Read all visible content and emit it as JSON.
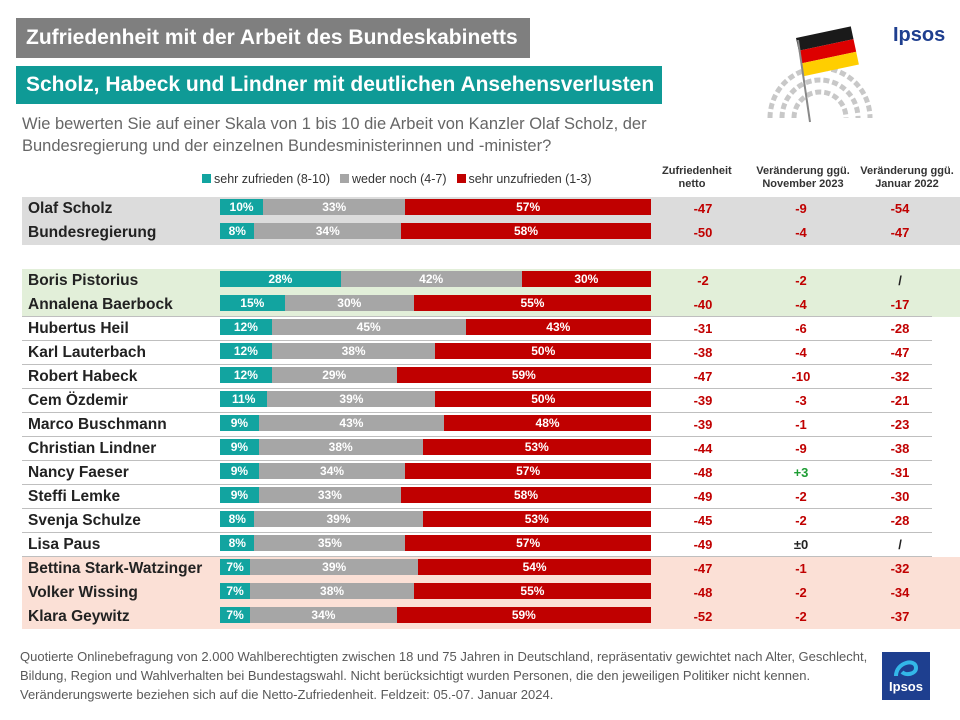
{
  "header": {
    "title": "Zufriedenheit mit der Arbeit des Bundeskabinetts",
    "subtitle": "Scholz, Habeck und Lindner mit deutlichen Ansehensverlusten",
    "question": "Wie bewerten Sie auf einer Skala von 1 bis 10 die Arbeit von Kanzler Olaf Scholz, der Bundesregierung und der einzelnen Bundesministerinnen und -minister?",
    "brand": "Ipsos"
  },
  "legend": {
    "s1": "sehr zufrieden (8-10)",
    "s2": "weder noch (4-7)",
    "s3": "sehr unzufrieden (1-3)"
  },
  "columns": {
    "c1": [
      "Zufriedenheit",
      "netto"
    ],
    "c2": [
      "Veränderung ggü.",
      "November 2023"
    ],
    "c3": [
      "Veränderung ggü.",
      "Januar 2022"
    ]
  },
  "colors": {
    "sehr_zufrieden": "#12a4a0",
    "weder_noch": "#a6a6a6",
    "sehr_unzufrieden": "#c00000",
    "title_gray": "#7f7f7f",
    "title_teal": "#0f9a96",
    "band_gray": "#dcdcdc",
    "band_green": "#e2efd9",
    "band_pink": "#fbe0d6",
    "positive_change": "#1e9d34"
  },
  "chart_data": {
    "type": "bar",
    "stacked": true,
    "orientation": "horizontal",
    "categories": [
      "Olaf Scholz",
      "Bundesregierung",
      "Boris Pistorius",
      "Annalena Baerbock",
      "Hubertus Heil",
      "Karl Lauterbach",
      "Robert Habeck",
      "Cem Özdemir",
      "Marco Buschmann",
      "Christian Lindner",
      "Nancy Faeser",
      "Steffi Lemke",
      "Svenja Schulze",
      "Lisa Paus",
      "Bettina Stark-Watzinger",
      "Volker Wissing",
      "Klara Geywitz"
    ],
    "series": [
      {
        "name": "sehr zufrieden (8-10)",
        "values": [
          10,
          8,
          28,
          15,
          12,
          12,
          12,
          11,
          9,
          9,
          9,
          9,
          8,
          8,
          7,
          7,
          7
        ]
      },
      {
        "name": "weder noch (4-7)",
        "values": [
          33,
          34,
          42,
          30,
          45,
          38,
          29,
          39,
          43,
          38,
          34,
          33,
          39,
          35,
          39,
          38,
          34
        ]
      },
      {
        "name": "sehr unzufrieden (1-3)",
        "values": [
          57,
          58,
          30,
          55,
          43,
          50,
          59,
          50,
          48,
          53,
          57,
          58,
          53,
          57,
          54,
          55,
          59
        ]
      }
    ],
    "labels": [
      [
        "10%",
        "33%",
        "57%"
      ],
      [
        "8%",
        "34%",
        "58%"
      ],
      [
        "28%",
        "42%",
        "30%"
      ],
      [
        "15%",
        "30%",
        "55%"
      ],
      [
        "12%",
        "45%",
        "43%"
      ],
      [
        "12%",
        "38%",
        "50%"
      ],
      [
        "12%",
        "29%",
        "59%"
      ],
      [
        "11%",
        "39%",
        "50%"
      ],
      [
        "9%",
        "43%",
        "48%"
      ],
      [
        "9%",
        "38%",
        "53%"
      ],
      [
        "9%",
        "34%",
        "57%"
      ],
      [
        "9%",
        "33%",
        "58%"
      ],
      [
        "8%",
        "39%",
        "53%"
      ],
      [
        "8%",
        "35%",
        "57%"
      ],
      [
        "7%",
        "39%",
        "54%"
      ],
      [
        "7%",
        "38%",
        "55%"
      ],
      [
        "7%",
        "34%",
        "59%"
      ]
    ],
    "netto": [
      "-47",
      "-50",
      "-2",
      "-40",
      "-31",
      "-38",
      "-47",
      "-39",
      "-39",
      "-44",
      "-48",
      "-49",
      "-45",
      "-49",
      "-47",
      "-48",
      "-52"
    ],
    "change_nov_2023": [
      "-9",
      "-4",
      "-2",
      "-4",
      "-6",
      "-4",
      "-10",
      "-3",
      "-1",
      "-9",
      "+3",
      "-2",
      "-2",
      "±0",
      "-1",
      "-2",
      "-2"
    ],
    "change_jan_2022": [
      "-54",
      "-47",
      "/",
      "-17",
      "-28",
      "-47",
      "-32",
      "-21",
      "-23",
      "-38",
      "-31",
      "-30",
      "-28",
      "/",
      "-32",
      "-34",
      "-37"
    ],
    "ylim": [
      0,
      100
    ],
    "legend_position": "top"
  },
  "footer": {
    "note": "Quotierte Onlinebefragung von 2.000 Wahlberechtigten zwischen 18 und 75 Jahren in Deutschland, repräsentativ gewichtet nach Alter, Geschlecht, Bildung, Region und Wahlverhalten bei Bundestagswahl. Nicht berücksichtigt wurden Personen, die den jeweiligen Politiker nicht kennen. Veränderungswerte beziehen sich auf die Netto-Zufriedenheit. Feldzeit: 05.-07. Januar 2024.",
    "brand": "Ipsos"
  }
}
